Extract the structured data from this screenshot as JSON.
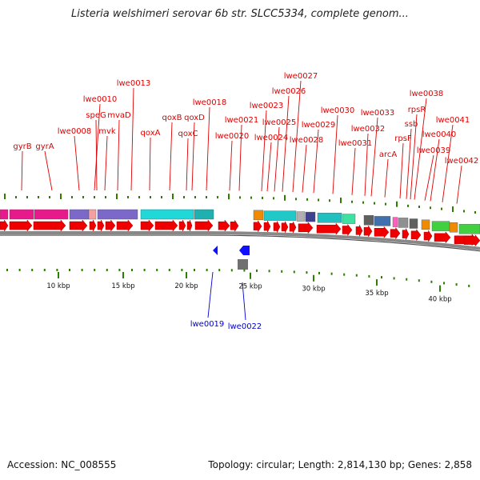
{
  "title": "Listeria welshimeri serovar 6b str. SLCC5334, complete genom...",
  "accession_text": "Accession: NC_008555",
  "topology_text": "Topology: circular; Length: 2,814,130 bp; Genes: 2,858",
  "colors": {
    "label_top": "#dd0000",
    "label_bottom": "#0000cc",
    "forward_gene": "#ee0000",
    "tick": "#2e7d00",
    "backbone": "#888888"
  },
  "scale_labels": [
    "10 kbp",
    "15 kbp",
    "20 kbp",
    "25 kbp",
    "30 kbp",
    "35 kbp",
    "40 kbp"
  ],
  "gene_labels_top": [
    "gyrB",
    "gyrA",
    "lwe0008",
    "lwe0010",
    "speG",
    "mvk",
    "mvaD",
    "lwe0013",
    "qoxA",
    "qoxB",
    "qoxC",
    "qoxD",
    "lwe0018",
    "lwe0020",
    "lwe0021",
    "lwe0023",
    "lwe0024",
    "lwe0025",
    "lwe0026",
    "lwe0027",
    "lwe0028",
    "lwe0029",
    "lwe0030",
    "lwe0031",
    "lwe0032",
    "lwe0033",
    "arcA",
    "rpsF",
    "ssb",
    "rpsR",
    "lwe0038",
    "lwe0039",
    "lwe0040",
    "lwe0041",
    "lwe0042"
  ],
  "gene_labels_bottom": [
    "lwe0019",
    "lwe0022"
  ]
}
